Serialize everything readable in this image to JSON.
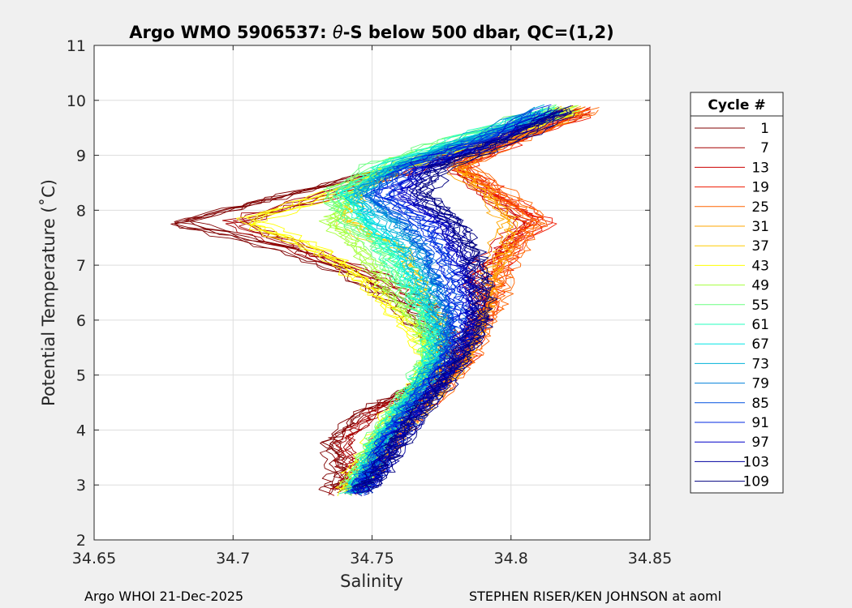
{
  "chart_data": {
    "type": "line",
    "title_prefix": "Argo WMO 5906537: ",
    "title_theta": "θ",
    "title_suffix": "-S below 500 dbar,  QC=(1,2)",
    "xlabel": "Salinity",
    "ylabel": "Potential Temperature (˚C)",
    "xlim": [
      34.65,
      34.85
    ],
    "ylim": [
      2,
      11
    ],
    "xticks": [
      34.65,
      34.7,
      34.75,
      34.8,
      34.85
    ],
    "xtick_labels": [
      "34.65",
      "34.7",
      "34.75",
      "34.8",
      "34.85"
    ],
    "yticks": [
      2,
      3,
      4,
      5,
      6,
      7,
      8,
      9,
      10,
      11
    ],
    "ytick_labels": [
      "2",
      "3",
      "4",
      "5",
      "6",
      "7",
      "8",
      "9",
      "10",
      "11"
    ],
    "grid": true,
    "legend_title": "Cycle #",
    "legend_position": "right-outside",
    "legend": [
      "1",
      "7",
      "13",
      "19",
      "25",
      "31",
      "37",
      "43",
      "49",
      "55",
      "61",
      "67",
      "73",
      "79",
      "85",
      "91",
      "97",
      "103",
      "109"
    ],
    "series_colors": [
      "#800000",
      "#a60000",
      "#cc0000",
      "#ef1a00",
      "#ff6400",
      "#ffa600",
      "#ffcc00",
      "#ffff00",
      "#a6ff3f",
      "#6aff80",
      "#26ffbf",
      "#00e6e6",
      "#00b3d9",
      "#0080d9",
      "#0050e0",
      "#0028e0",
      "#0000c8",
      "#0000a0",
      "#000080"
    ],
    "profiles": {
      "temperature": [
        2.9,
        3.3,
        3.8,
        4.3,
        4.8,
        5.3,
        5.8,
        6.3,
        6.8,
        7.3,
        7.8,
        8.3,
        8.8,
        9.3,
        9.9
      ],
      "salinity_by_series": [
        [
          34.735,
          34.738,
          34.735,
          34.745,
          34.765,
          34.775,
          34.77,
          34.76,
          34.745,
          34.72,
          34.68,
          34.72,
          34.76,
          34.79,
          34.82
        ],
        [
          34.738,
          34.742,
          34.74,
          34.75,
          34.768,
          34.778,
          34.778,
          34.77,
          34.752,
          34.725,
          34.7,
          34.735,
          34.768,
          34.795,
          34.825
        ],
        [
          34.742,
          34.748,
          34.752,
          34.76,
          34.772,
          34.782,
          34.785,
          34.79,
          34.785,
          34.795,
          34.805,
          34.79,
          34.78,
          34.8,
          34.83
        ],
        [
          34.744,
          34.75,
          34.756,
          34.764,
          34.775,
          34.784,
          34.788,
          34.793,
          34.795,
          34.8,
          34.812,
          34.795,
          34.782,
          34.802,
          34.832
        ],
        [
          34.745,
          34.752,
          34.758,
          34.766,
          34.776,
          34.785,
          34.79,
          34.795,
          34.798,
          34.802,
          34.81,
          34.798,
          34.784,
          34.803,
          34.833
        ],
        [
          34.744,
          34.75,
          34.756,
          34.765,
          34.774,
          34.782,
          34.786,
          34.79,
          34.792,
          34.796,
          34.798,
          34.79,
          34.778,
          34.798,
          34.828
        ],
        [
          34.742,
          34.748,
          34.754,
          34.762,
          34.77,
          34.776,
          34.775,
          34.77,
          34.765,
          34.76,
          34.74,
          34.745,
          34.76,
          34.79,
          34.822
        ],
        [
          34.74,
          34.745,
          34.75,
          34.758,
          34.766,
          34.77,
          34.765,
          34.755,
          34.745,
          34.73,
          34.705,
          34.735,
          34.76,
          34.792,
          34.824
        ],
        [
          34.741,
          34.746,
          34.75,
          34.758,
          34.765,
          34.77,
          34.768,
          34.76,
          34.752,
          34.745,
          34.735,
          34.742,
          34.755,
          34.785,
          34.828
        ],
        [
          34.742,
          34.747,
          34.751,
          34.758,
          34.765,
          34.771,
          34.77,
          34.765,
          34.758,
          34.752,
          34.74,
          34.735,
          34.752,
          34.782,
          34.822
        ],
        [
          34.743,
          34.748,
          34.752,
          34.759,
          34.766,
          34.772,
          34.772,
          34.768,
          34.762,
          34.755,
          34.748,
          34.74,
          34.755,
          34.783,
          34.82
        ],
        [
          34.744,
          34.749,
          34.753,
          34.76,
          34.767,
          34.773,
          34.774,
          34.77,
          34.765,
          34.76,
          34.75,
          34.742,
          34.757,
          34.785,
          34.818
        ],
        [
          34.744,
          34.75,
          34.754,
          34.761,
          34.768,
          34.774,
          34.776,
          34.773,
          34.768,
          34.764,
          34.755,
          34.745,
          34.758,
          34.786,
          34.816
        ],
        [
          34.745,
          34.75,
          34.755,
          34.762,
          34.769,
          34.776,
          34.778,
          34.776,
          34.772,
          34.768,
          34.76,
          34.748,
          34.76,
          34.788,
          34.814
        ],
        [
          34.745,
          34.751,
          34.756,
          34.763,
          34.77,
          34.777,
          34.78,
          34.779,
          34.776,
          34.772,
          34.765,
          34.752,
          34.762,
          34.79,
          34.815
        ],
        [
          34.746,
          34.752,
          34.757,
          34.764,
          34.772,
          34.779,
          34.783,
          34.782,
          34.78,
          34.776,
          34.77,
          34.755,
          34.765,
          34.793,
          34.818
        ],
        [
          34.746,
          34.752,
          34.758,
          34.765,
          34.773,
          34.78,
          34.785,
          34.786,
          34.784,
          34.78,
          34.775,
          34.76,
          34.768,
          34.795,
          34.82
        ],
        [
          34.747,
          34.753,
          34.759,
          34.766,
          34.774,
          34.781,
          34.786,
          34.788,
          34.787,
          34.783,
          34.778,
          34.765,
          34.772,
          34.797,
          34.822
        ],
        [
          34.747,
          34.754,
          34.76,
          34.767,
          34.775,
          34.782,
          34.788,
          34.79,
          34.789,
          34.786,
          34.78,
          34.768,
          34.775,
          34.8,
          34.824
        ]
      ]
    }
  },
  "footer": {
    "left": "Argo WHOI 21-Dec-2025",
    "right": "STEPHEN RISER/KEN JOHNSON at aoml"
  }
}
